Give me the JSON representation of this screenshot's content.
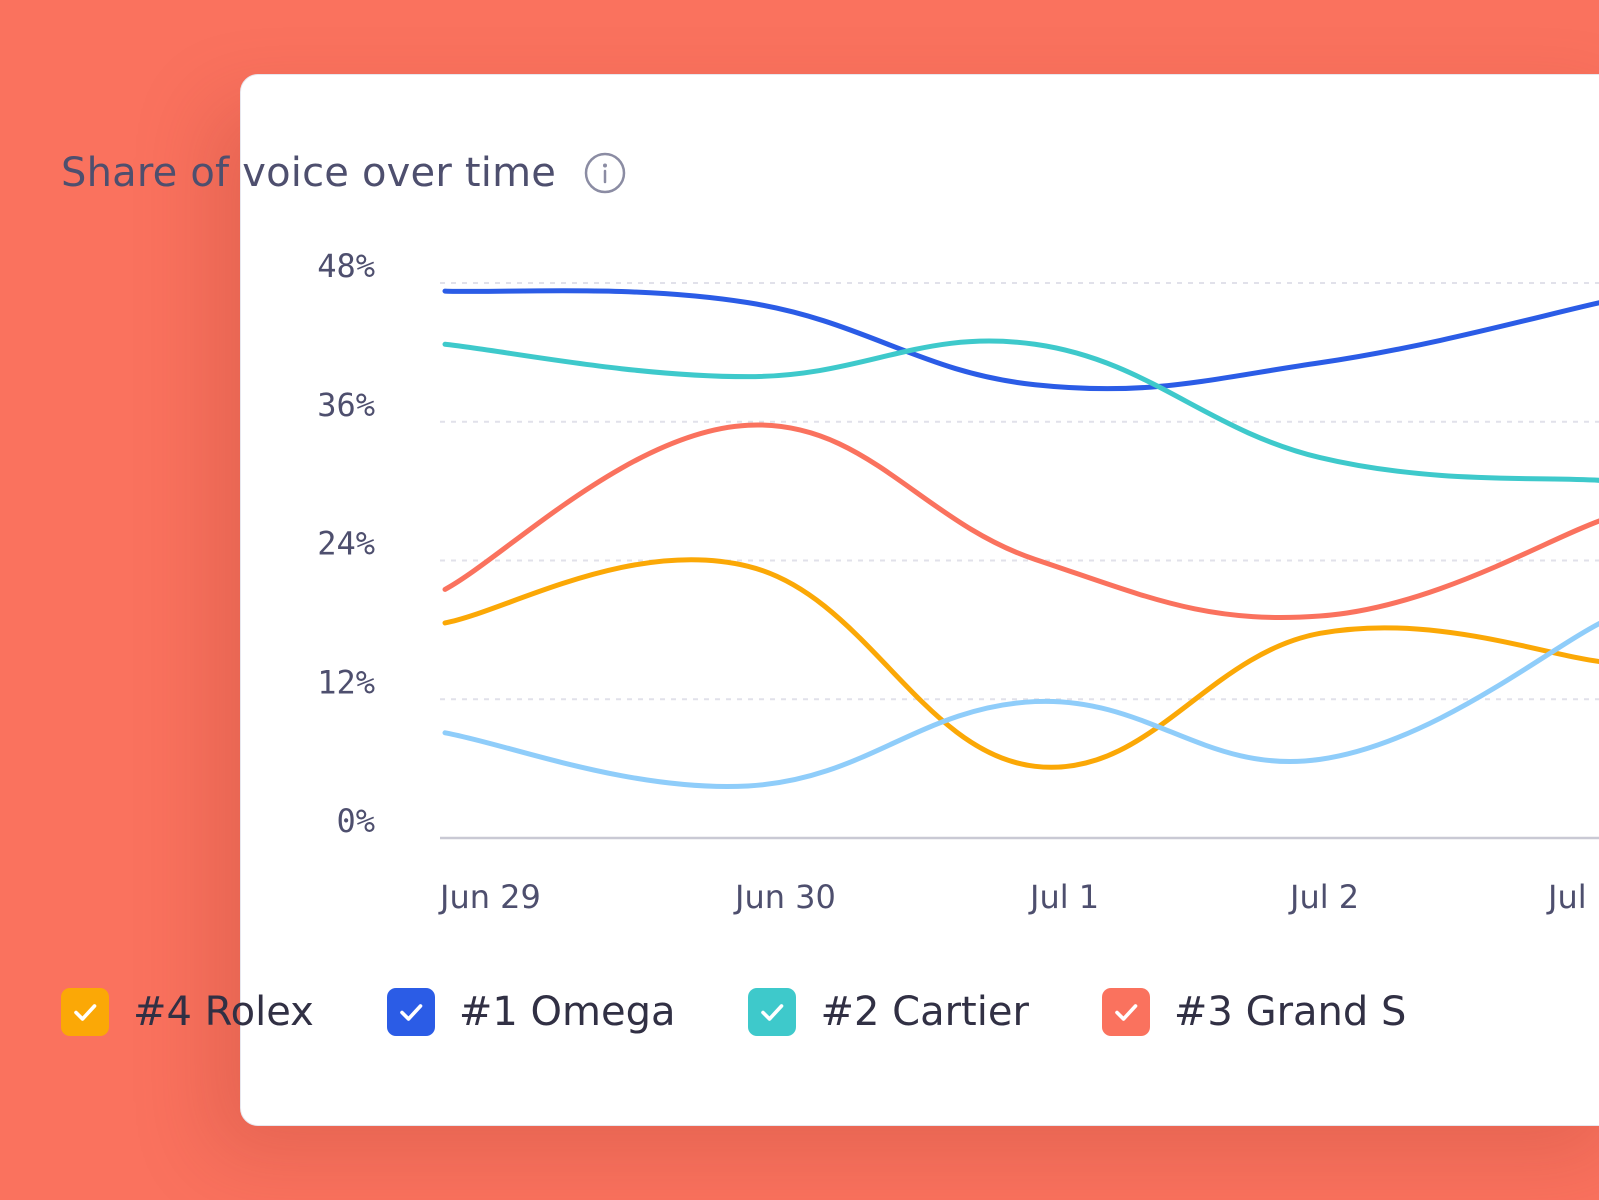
{
  "title": "Share of voice over time",
  "icons": {
    "info": "info-icon",
    "check": "check-icon"
  },
  "colors": {
    "background": "#fa725e",
    "card": "#ffffff",
    "grid": "#e1e1ea",
    "axis": "#c9c9d4",
    "text": "#4e4f6e"
  },
  "chart_data": {
    "type": "line",
    "title": "Share of voice over time",
    "xlabel": "",
    "ylabel": "",
    "categories": [
      "Jun 29",
      "Jun 30",
      "Jul 1",
      "Jul 2",
      "Jul"
    ],
    "x_tick_labels": [
      "Jun 29",
      "Jun 30",
      "Jul 1",
      "Jul 2",
      "Jul"
    ],
    "y_tick_labels": [
      "48%",
      "36%",
      "24%",
      "12%",
      "0%"
    ],
    "y_ticks": [
      48,
      36,
      24,
      12,
      0
    ],
    "ylim": [
      0,
      48
    ],
    "grid": true,
    "legend_position": "bottom",
    "series": [
      {
        "name": "#4 Rolex",
        "color": "#fba806",
        "values": [
          18.6,
          23.5,
          6.2,
          17.7,
          15.2
        ]
      },
      {
        "name": "#1 Omega",
        "color": "#2b5ce6",
        "values": [
          47.3,
          46.3,
          39.2,
          41.1,
          46.4
        ]
      },
      {
        "name": "#2 Cartier",
        "color": "#3ec9cb",
        "values": [
          42.7,
          39.9,
          42.7,
          32.9,
          30.9
        ]
      },
      {
        "name": "#3 Grand S",
        "color": "#fa725e",
        "values": [
          21.5,
          35.7,
          24.1,
          19.2,
          27.6
        ]
      },
      {
        "name": "",
        "color": "#8fcdfa",
        "values": [
          9.1,
          4.5,
          11.8,
          6.8,
          18.8
        ]
      }
    ]
  },
  "legend": [
    {
      "label": "#4 Rolex",
      "color": "#fba806"
    },
    {
      "label": "#1 Omega",
      "color": "#2b5ce6"
    },
    {
      "label": "#2 Cartier",
      "color": "#3ec9cb"
    },
    {
      "label": "#3 Grand S",
      "color": "#fa725e"
    }
  ]
}
